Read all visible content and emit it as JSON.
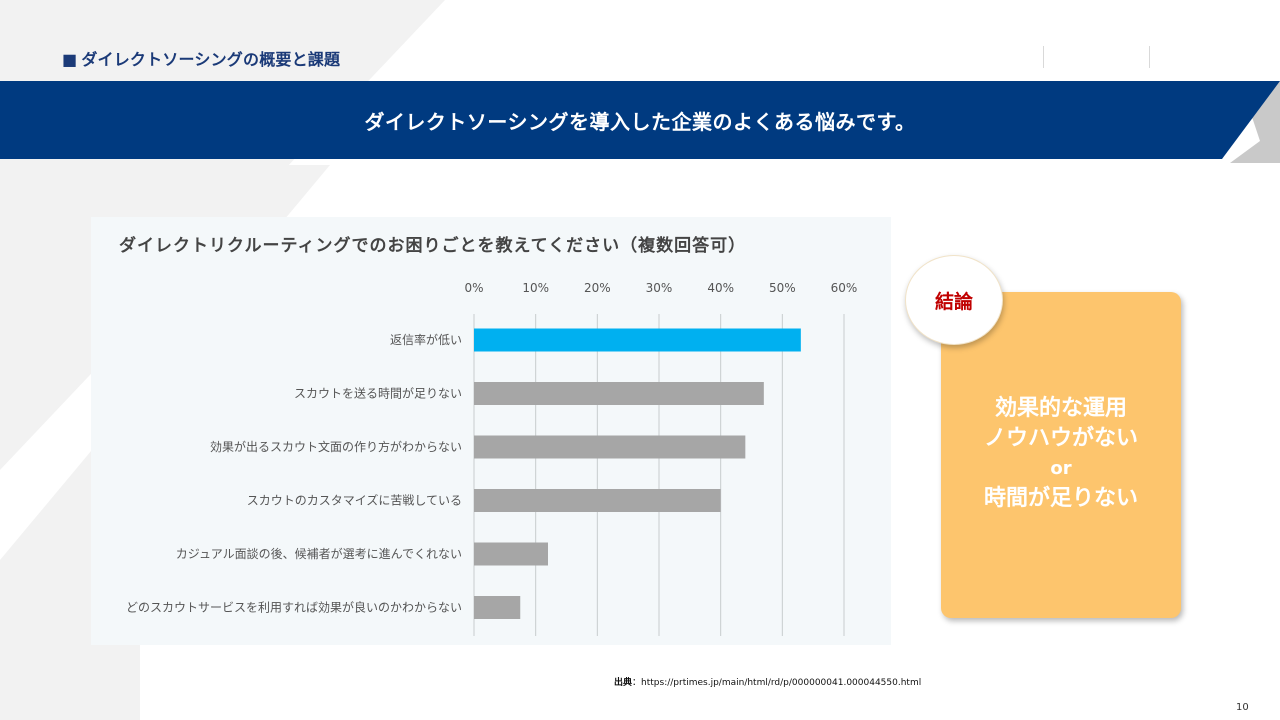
{
  "header": {
    "section_title": "ダイレクトソーシングの概要と課題",
    "banner_text": "ダイレクトソーシングを導入した企業のよくある悩みです。"
  },
  "colors": {
    "navy": "#003a80",
    "highlight_bar": "#00b0f0",
    "gray_bar": "#a6a6a6",
    "conclusion_bg": "#fdc56d",
    "badge_text": "#c00000"
  },
  "chart_data": {
    "type": "bar",
    "orientation": "horizontal",
    "title": "ダイレクトリクルーティングでのお困りごとを教えてください（複数回答可）",
    "categories": [
      "返信率が低い",
      "スカウトを送る時間が足りない",
      "効果が出るスカウト文面の作り方がわからない",
      "スカウトのカスタマイズに苦戦している",
      "カジュアル面談の後、候補者が選考に進んでくれない",
      "どのスカウトサービスを利用すれば効果が良いのかわからない"
    ],
    "values": [
      53,
      47,
      44,
      40,
      12,
      7.5
    ],
    "highlight_index": 0,
    "xlim": [
      0,
      60
    ],
    "ticks": [
      "0%",
      "10%",
      "20%",
      "30%",
      "40%",
      "50%",
      "60%"
    ],
    "unit": "%",
    "grid": true,
    "xlabel": "",
    "ylabel": ""
  },
  "conclusion": {
    "badge": "結論",
    "line1": "効果的な運用",
    "line2": "ノウハウがない",
    "line3": "or",
    "line4": "時間が足りない"
  },
  "source": {
    "label": "出典",
    "separator": "：",
    "url": "https://prtimes.jp/main/html/rd/p/000000041.000044550.html"
  },
  "page_number": "10"
}
